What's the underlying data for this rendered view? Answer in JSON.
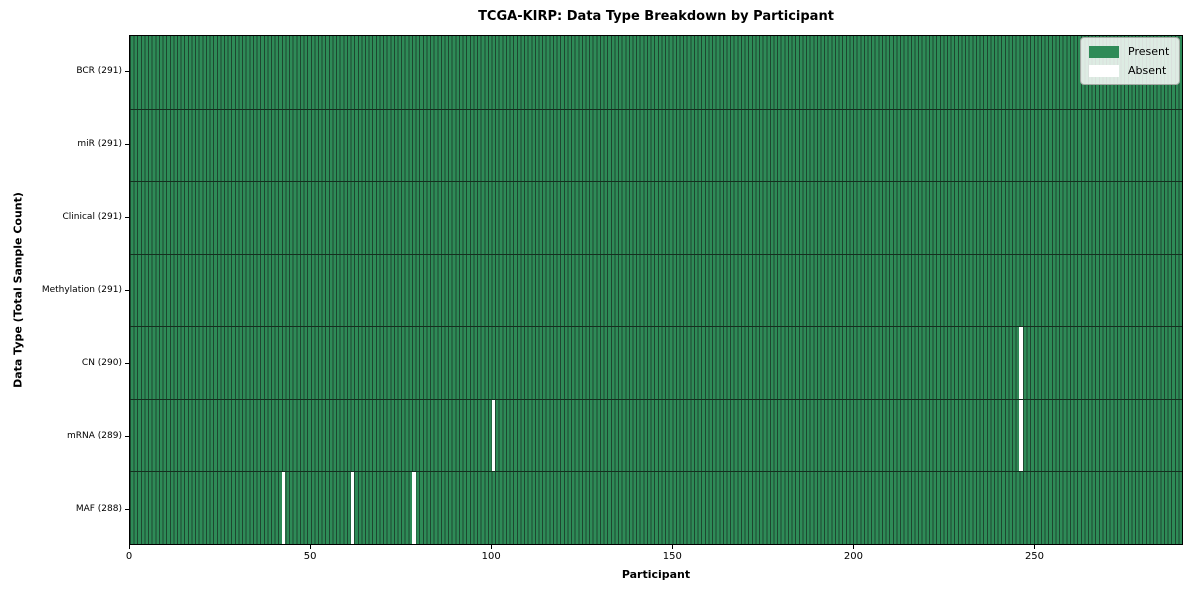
{
  "figure": {
    "title": "TCGA-KIRP: Data Type Breakdown by Participant",
    "xlabel": "Participant",
    "ylabel": "Data Type (Total Sample Count)"
  },
  "legend": {
    "items": [
      {
        "label": "Present",
        "color": "#2e8b57"
      },
      {
        "label": "Absent",
        "color": "#ffffff"
      }
    ]
  },
  "chart_data": {
    "type": "heatmap",
    "title": "TCGA-KIRP: Data Type Breakdown by Participant",
    "xlabel": "Participant",
    "ylabel": "Data Type (Total Sample Count)",
    "n_participants": 291,
    "xlim": [
      0,
      291
    ],
    "x_ticks": [
      0,
      50,
      100,
      150,
      200,
      250
    ],
    "legend_position": "upper right",
    "legend_entries": [
      "Present",
      "Absent"
    ],
    "grid": false,
    "rows": [
      {
        "name": "BCR",
        "label": "BCR (291)",
        "present_count": 291,
        "absent_participants": []
      },
      {
        "name": "miR",
        "label": "miR (291)",
        "present_count": 291,
        "absent_participants": []
      },
      {
        "name": "Clinical",
        "label": "Clinical (291)",
        "present_count": 291,
        "absent_participants": []
      },
      {
        "name": "Methylation",
        "label": "Methylation (291)",
        "present_count": 291,
        "absent_participants": []
      },
      {
        "name": "CN",
        "label": "CN (290)",
        "present_count": 290,
        "absent_participants": [
          246
        ]
      },
      {
        "name": "mRNA",
        "label": "mRNA (289)",
        "present_count": 289,
        "absent_participants": [
          100,
          246
        ]
      },
      {
        "name": "MAF",
        "label": "MAF (288)",
        "present_count": 288,
        "absent_participants": [
          42,
          61,
          78
        ]
      }
    ],
    "colors": {
      "present": "#2e8b57",
      "absent": "#ffffff",
      "cell_edge": "#1d4730",
      "row_divider": "#14301f"
    }
  }
}
